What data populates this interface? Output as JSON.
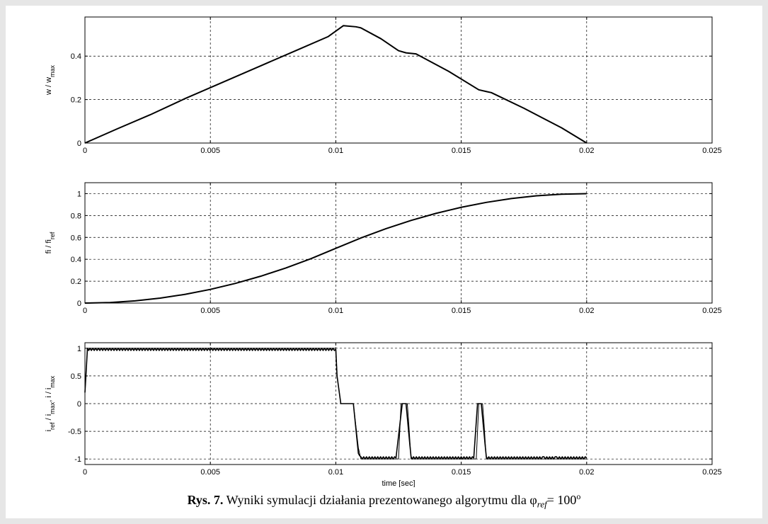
{
  "caption": {
    "label": "Rys. 7.",
    "text": "Wyniki symulacji działania prezentowanego algorytmu dla",
    "symbol": "φ",
    "symbol_sub": "ref",
    "equals": "= 100",
    "unit_sup": "o"
  },
  "chart_data": [
    {
      "type": "line",
      "xlabel": "",
      "ylabel_html": "w / w<tspan baseline-shift='sub' font-size='9'>max</tspan>",
      "xlim": [
        0,
        0.025
      ],
      "ylim": [
        0,
        0.58
      ],
      "xticks": [
        0,
        0.005,
        0.01,
        0.015,
        0.02,
        0.025
      ],
      "xtick_labels": [
        "0",
        "0.005",
        "0.01",
        "0.015",
        "0.02",
        "0.025"
      ],
      "yticks": [
        0,
        0.2,
        0.4
      ],
      "ytick_labels": [
        "0",
        "0.2",
        "0.4"
      ],
      "grid": true,
      "series": [
        {
          "x": [
            0,
            0.0013,
            0.0026,
            0.004,
            0.0055,
            0.007,
            0.0085,
            0.0097,
            0.0103,
            0.0108,
            0.011,
            0.0118,
            0.0125,
            0.0128,
            0.0132,
            0.0145,
            0.0157,
            0.016,
            0.0162,
            0.0175,
            0.019,
            0.02
          ],
          "y": [
            0,
            0.066,
            0.13,
            0.205,
            0.28,
            0.355,
            0.43,
            0.49,
            0.54,
            0.535,
            0.53,
            0.48,
            0.425,
            0.415,
            0.41,
            0.33,
            0.245,
            0.237,
            0.232,
            0.16,
            0.07,
            0
          ]
        }
      ]
    },
    {
      "type": "line",
      "xlabel": "",
      "ylabel_html": "fi / fi<tspan baseline-shift='sub' font-size='9'>ref</tspan>",
      "xlim": [
        0,
        0.025
      ],
      "ylim": [
        0,
        1.1
      ],
      "xticks": [
        0,
        0.005,
        0.01,
        0.015,
        0.02,
        0.025
      ],
      "xtick_labels": [
        "0",
        "0.005",
        "0.01",
        "0.015",
        "0.02",
        "0.025"
      ],
      "yticks": [
        0,
        0.2,
        0.4,
        0.6,
        0.8,
        1
      ],
      "ytick_labels": [
        "0",
        "0.2",
        "0.4",
        "0.6",
        "0.8",
        "1"
      ],
      "grid": true,
      "series": [
        {
          "x": [
            0,
            0.001,
            0.002,
            0.003,
            0.004,
            0.005,
            0.006,
            0.007,
            0.008,
            0.009,
            0.01,
            0.011,
            0.012,
            0.013,
            0.014,
            0.015,
            0.016,
            0.017,
            0.018,
            0.019,
            0.02
          ],
          "y": [
            0,
            0.005,
            0.02,
            0.045,
            0.08,
            0.125,
            0.18,
            0.245,
            0.32,
            0.405,
            0.5,
            0.595,
            0.68,
            0.755,
            0.82,
            0.875,
            0.92,
            0.955,
            0.98,
            0.995,
            1.0
          ]
        }
      ]
    },
    {
      "type": "line",
      "xlabel": "time [sec]",
      "ylabel_html": "i<tspan baseline-shift='sub' font-size='9'>ref</tspan> / i<tspan baseline-shift='sub' font-size='9'>max</tspan>, i / i<tspan baseline-shift='sub' font-size='9'>max</tspan>",
      "xlim": [
        0,
        0.025
      ],
      "ylim": [
        -1.1,
        1.1
      ],
      "xticks": [
        0,
        0.005,
        0.01,
        0.015,
        0.02,
        0.025
      ],
      "xtick_labels": [
        "0",
        "0.005",
        "0.01",
        "0.015",
        "0.02",
        "0.025"
      ],
      "yticks": [
        -1,
        -0.5,
        0,
        0.5,
        1
      ],
      "ytick_labels": [
        "-1",
        "-0.5",
        "0",
        "0.5",
        "1"
      ],
      "grid": true,
      "series": [
        {
          "name": "",
          "x": [
            0,
            0.0001,
            0.0002,
            0.01,
            0.01005,
            0.0102,
            0.0105,
            0.0107,
            0.0109,
            0.011,
            0.0125,
            0.0126,
            0.0127,
            0.0128,
            0.01285,
            0.0129,
            0.013,
            0.0156,
            0.0157,
            0.01575,
            0.0158,
            0.01585,
            0.0159,
            0.016,
            0.02
          ],
          "y": [
            0.2,
            1,
            1,
            1,
            0.5,
            0,
            0,
            0,
            -0.8,
            -1,
            -1,
            0,
            0,
            0,
            0,
            -0.3,
            -1,
            -1,
            0,
            0,
            0,
            0,
            -0.3,
            -1,
            -1
          ],
          "stroke_width": 1
        },
        {
          "name": "",
          "x": [
            0,
            0.0001,
            0.0002,
            0.01,
            0.01005,
            0.0102,
            0.0105,
            0.0107,
            0.0109,
            0.011,
            0.0124,
            0.01265,
            0.0128,
            0.013,
            0.0131,
            0.0155,
            0.01565,
            0.0158,
            0.016,
            0.0161,
            0.0183,
            0.0188,
            0.02
          ],
          "y": [
            0.2,
            0.98,
            0.98,
            0.98,
            0.5,
            0,
            0,
            0,
            -0.9,
            -0.98,
            -0.98,
            0,
            0,
            -0.98,
            -0.98,
            -0.98,
            0,
            0,
            -0.98,
            -0.98,
            -0.98,
            -0.98,
            -0.98
          ],
          "stroke_width": 1.6,
          "ripple": 0.02
        }
      ]
    }
  ]
}
